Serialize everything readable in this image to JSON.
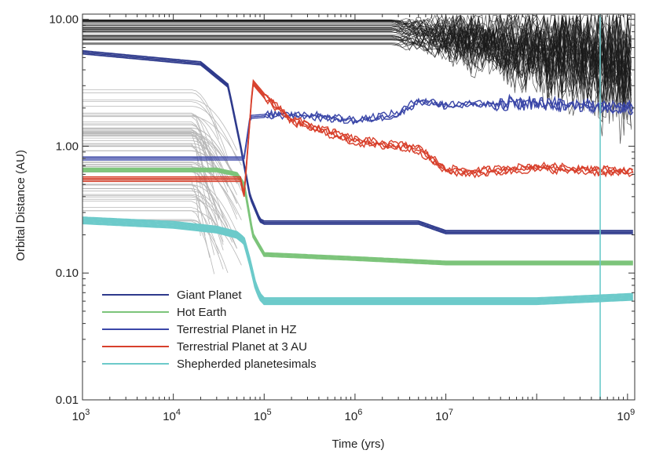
{
  "chart_data": {
    "type": "line",
    "title": "",
    "xlabel": "Time (yrs)",
    "ylabel": "Orbital Distance (AU)",
    "xscale": "log",
    "yscale": "log",
    "xlim": [
      1000,
      1200000000
    ],
    "ylim": [
      0.01,
      11
    ],
    "x_ticks": [
      {
        "value": 1000,
        "base": "10",
        "exp": "3"
      },
      {
        "value": 10000,
        "base": "10",
        "exp": "4"
      },
      {
        "value": 100000,
        "base": "10",
        "exp": "5"
      },
      {
        "value": 1000000,
        "base": "10",
        "exp": "6"
      },
      {
        "value": 10000000,
        "base": "10",
        "exp": "7"
      },
      {
        "value": 1000000000,
        "base": "10",
        "exp": "9"
      }
    ],
    "y_ticks": [
      {
        "value": 0.01,
        "label": "0.01"
      },
      {
        "value": 0.1,
        "label": "0.10"
      },
      {
        "value": 1,
        "label": "1.00"
      },
      {
        "value": 10,
        "label": "10.00"
      }
    ],
    "legend_position": "bottom-left",
    "colors": {
      "giant": "#2e3a8c",
      "hot_earth": "#7cc47a",
      "hz": "#3b47a8",
      "three_au": "#d8402c",
      "shepherded": "#6ccaca",
      "background_gray": "#b8b8b8",
      "background_black": "#1a1a1a"
    },
    "series": [
      {
        "key": "giant",
        "name": "Giant Planet",
        "x": [
          1000,
          20000,
          40000,
          55000,
          70000,
          90000,
          100000,
          1000000,
          5000000,
          10000000,
          100000000,
          1200000000
        ],
        "y": [
          5.5,
          4.5,
          3.0,
          1.0,
          0.4,
          0.26,
          0.25,
          0.25,
          0.25,
          0.21,
          0.21,
          0.21
        ]
      },
      {
        "key": "hot_earth",
        "name": "Hot Earth",
        "x": [
          1000,
          30000,
          50000,
          60000,
          75000,
          100000,
          1000000,
          10000000,
          100000000,
          1200000000
        ],
        "y": [
          0.65,
          0.65,
          0.6,
          0.5,
          0.2,
          0.14,
          0.13,
          0.12,
          0.12,
          0.12
        ]
      },
      {
        "key": "hz",
        "name": "Terrestrial Planet in HZ",
        "x": [
          1000,
          30000,
          50000,
          60000,
          70000,
          200000,
          1000000,
          3000000,
          5000000,
          10000000,
          50000000,
          1200000000
        ],
        "y": [
          0.8,
          0.8,
          0.8,
          0.8,
          1.7,
          1.8,
          1.6,
          1.8,
          2.3,
          2.1,
          2.2,
          2.0
        ]
      },
      {
        "key": "three_au",
        "name": "Terrestrial Planet at 3 AU",
        "x": [
          1000,
          30000,
          55000,
          60000,
          75000,
          100000,
          200000,
          1000000,
          3000000,
          5000000,
          10000000,
          20000000,
          100000000,
          1200000000
        ],
        "y": [
          0.55,
          0.55,
          0.55,
          0.4,
          3.2,
          2.5,
          1.6,
          1.1,
          1.0,
          0.95,
          0.65,
          0.62,
          0.68,
          0.62
        ]
      },
      {
        "key": "shepherded",
        "name": "Shepherded planetesimals",
        "x": [
          1000,
          10000,
          30000,
          50000,
          60000,
          70000,
          80000,
          90000,
          100000,
          1000000,
          100000000,
          1200000000
        ],
        "y": [
          0.26,
          0.24,
          0.22,
          0.2,
          0.18,
          0.12,
          0.08,
          0.065,
          0.06,
          0.06,
          0.06,
          0.065
        ]
      }
    ],
    "annotations": [
      {
        "type": "vertical-line",
        "x": 500000000,
        "color": "#6ccaca"
      }
    ]
  }
}
